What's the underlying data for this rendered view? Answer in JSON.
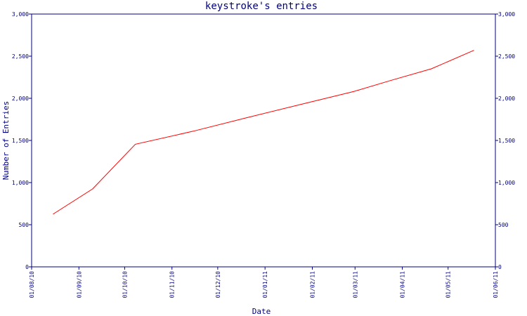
{
  "chart_data": {
    "type": "line",
    "title": "keystroke's entries",
    "xlabel": "Date",
    "ylabel": "Number of Entries",
    "x_tick_labels": [
      "01/08/10",
      "01/09/10",
      "01/10/10",
      "01/11/10",
      "01/12/10",
      "01/01/11",
      "01/02/11",
      "01/03/11",
      "01/04/11",
      "01/05/11",
      "01/06/11"
    ],
    "y_tick_labels": [
      "0",
      "500",
      "1,000",
      "1,500",
      "2,000",
      "2,500",
      "3,000"
    ],
    "y_tick_values": [
      0,
      500,
      1000,
      1500,
      2000,
      2500,
      3000
    ],
    "ylim": [
      0,
      3000
    ],
    "xlim": [
      "2010-08-01",
      "2011-06-01"
    ],
    "grid": false,
    "colors": {
      "line": "#ff0000",
      "axis": "#000080",
      "text": "#000080"
    },
    "series": [
      {
        "x": [
          "2010-08-15",
          "2010-09-10",
          "2010-10-08",
          "2010-11-15",
          "2010-12-20",
          "2011-01-25",
          "2011-02-28",
          "2011-03-25",
          "2011-04-20",
          "2011-05-18"
        ],
        "values": [
          625,
          925,
          1455,
          1610,
          1770,
          1930,
          2080,
          2215,
          2350,
          2570
        ]
      }
    ]
  }
}
